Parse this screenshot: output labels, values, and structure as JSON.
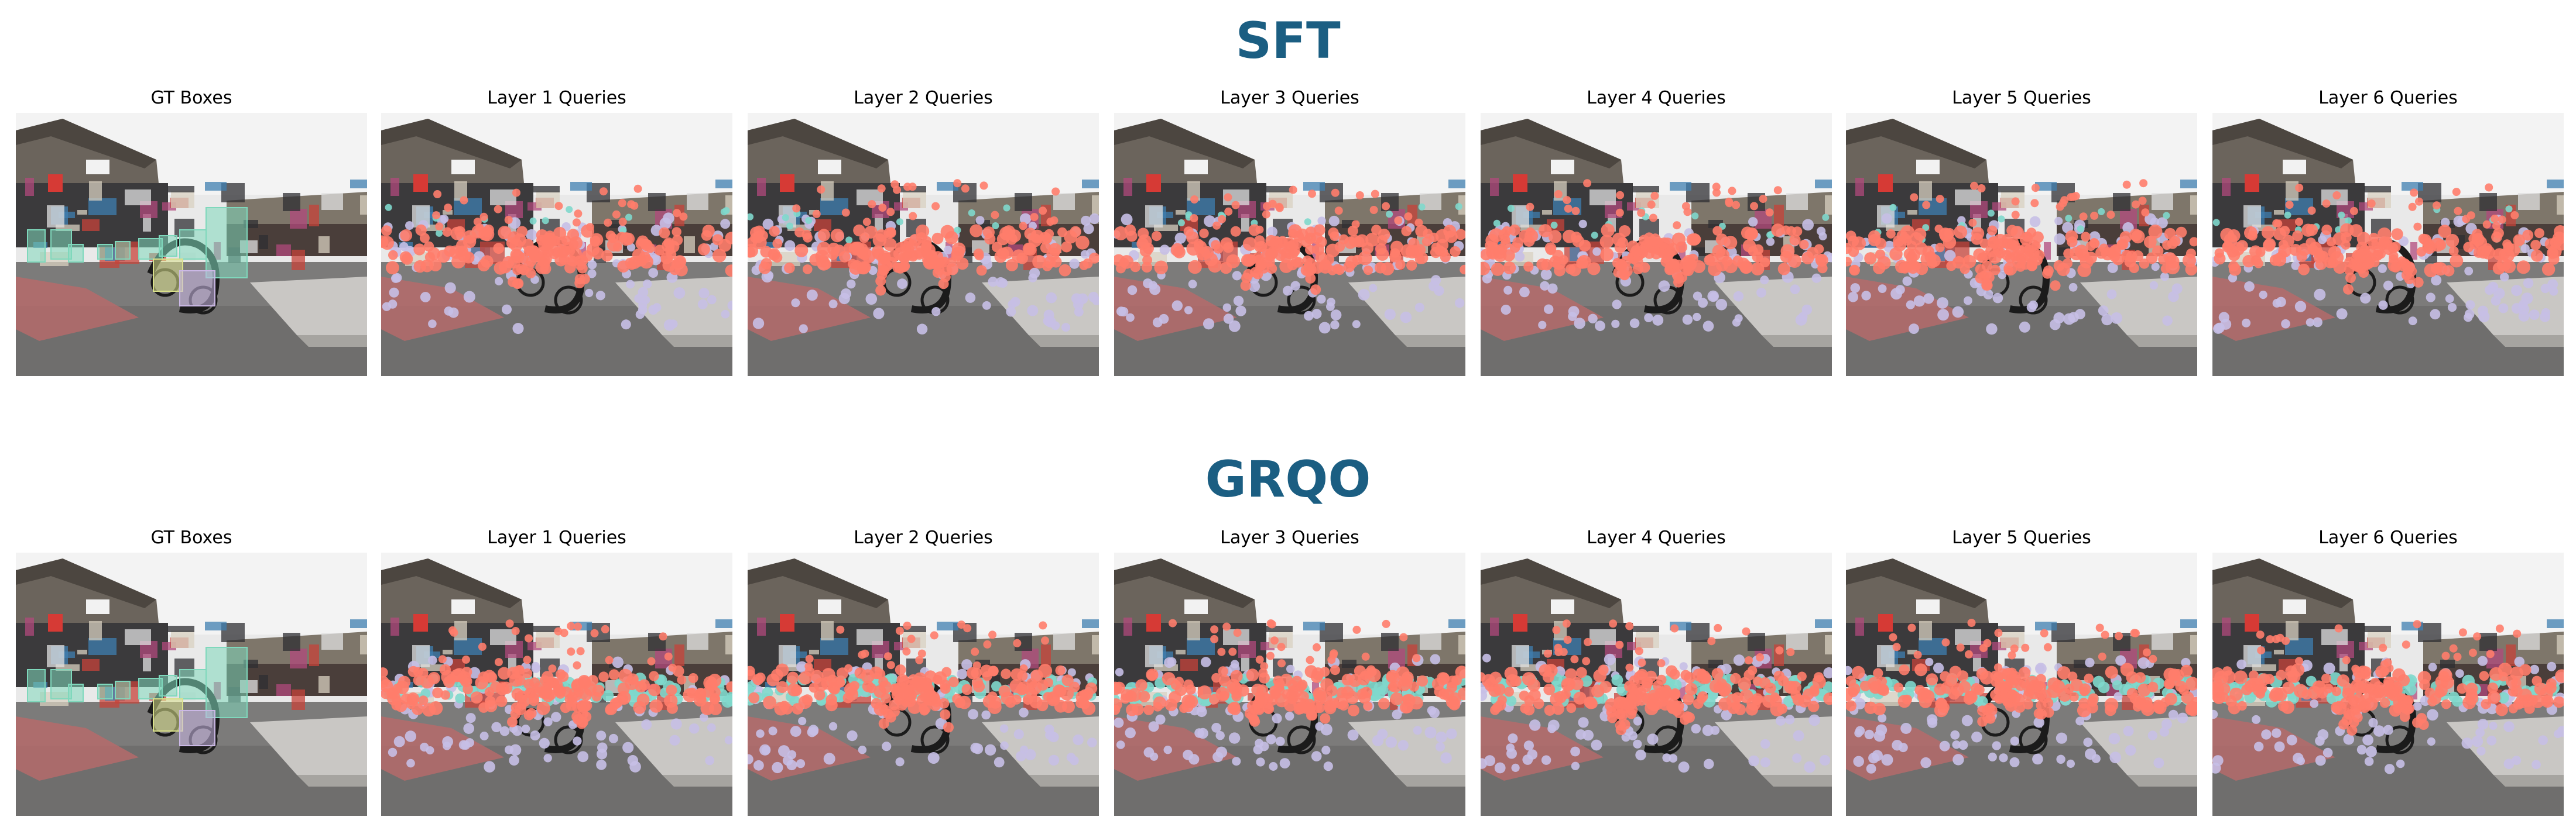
{
  "colors": {
    "title": "#1b5e82",
    "query_primary": "#ff7d6b",
    "query_secondary": "#c6bfe6",
    "query_tertiary": "#7fd8cc",
    "gt_box_fill": "#7fd8bc",
    "gt_box_alt_fill": "#cbb8e6",
    "gt_box_yellow": "#d9e08a"
  },
  "rows": [
    {
      "title": "SFT",
      "panels": [
        {
          "label": "GT Boxes",
          "kind": "gt"
        },
        {
          "label": "Layer 1 Queries",
          "kind": "queries"
        },
        {
          "label": "Layer 2 Queries",
          "kind": "queries"
        },
        {
          "label": "Layer 3 Queries",
          "kind": "queries"
        },
        {
          "label": "Layer 4 Queries",
          "kind": "queries"
        },
        {
          "label": "Layer 5 Queries",
          "kind": "queries"
        },
        {
          "label": "Layer 6 Queries",
          "kind": "queries"
        }
      ]
    },
    {
      "title": "GRQO",
      "panels": [
        {
          "label": "GT Boxes",
          "kind": "gt"
        },
        {
          "label": "Layer 1 Queries",
          "kind": "queries"
        },
        {
          "label": "Layer 2 Queries",
          "kind": "queries"
        },
        {
          "label": "Layer 3 Queries",
          "kind": "queries"
        },
        {
          "label": "Layer 4 Queries",
          "kind": "queries"
        },
        {
          "label": "Layer 5 Queries",
          "kind": "queries"
        },
        {
          "label": "Layer 6 Queries",
          "kind": "queries"
        }
      ]
    }
  ]
}
